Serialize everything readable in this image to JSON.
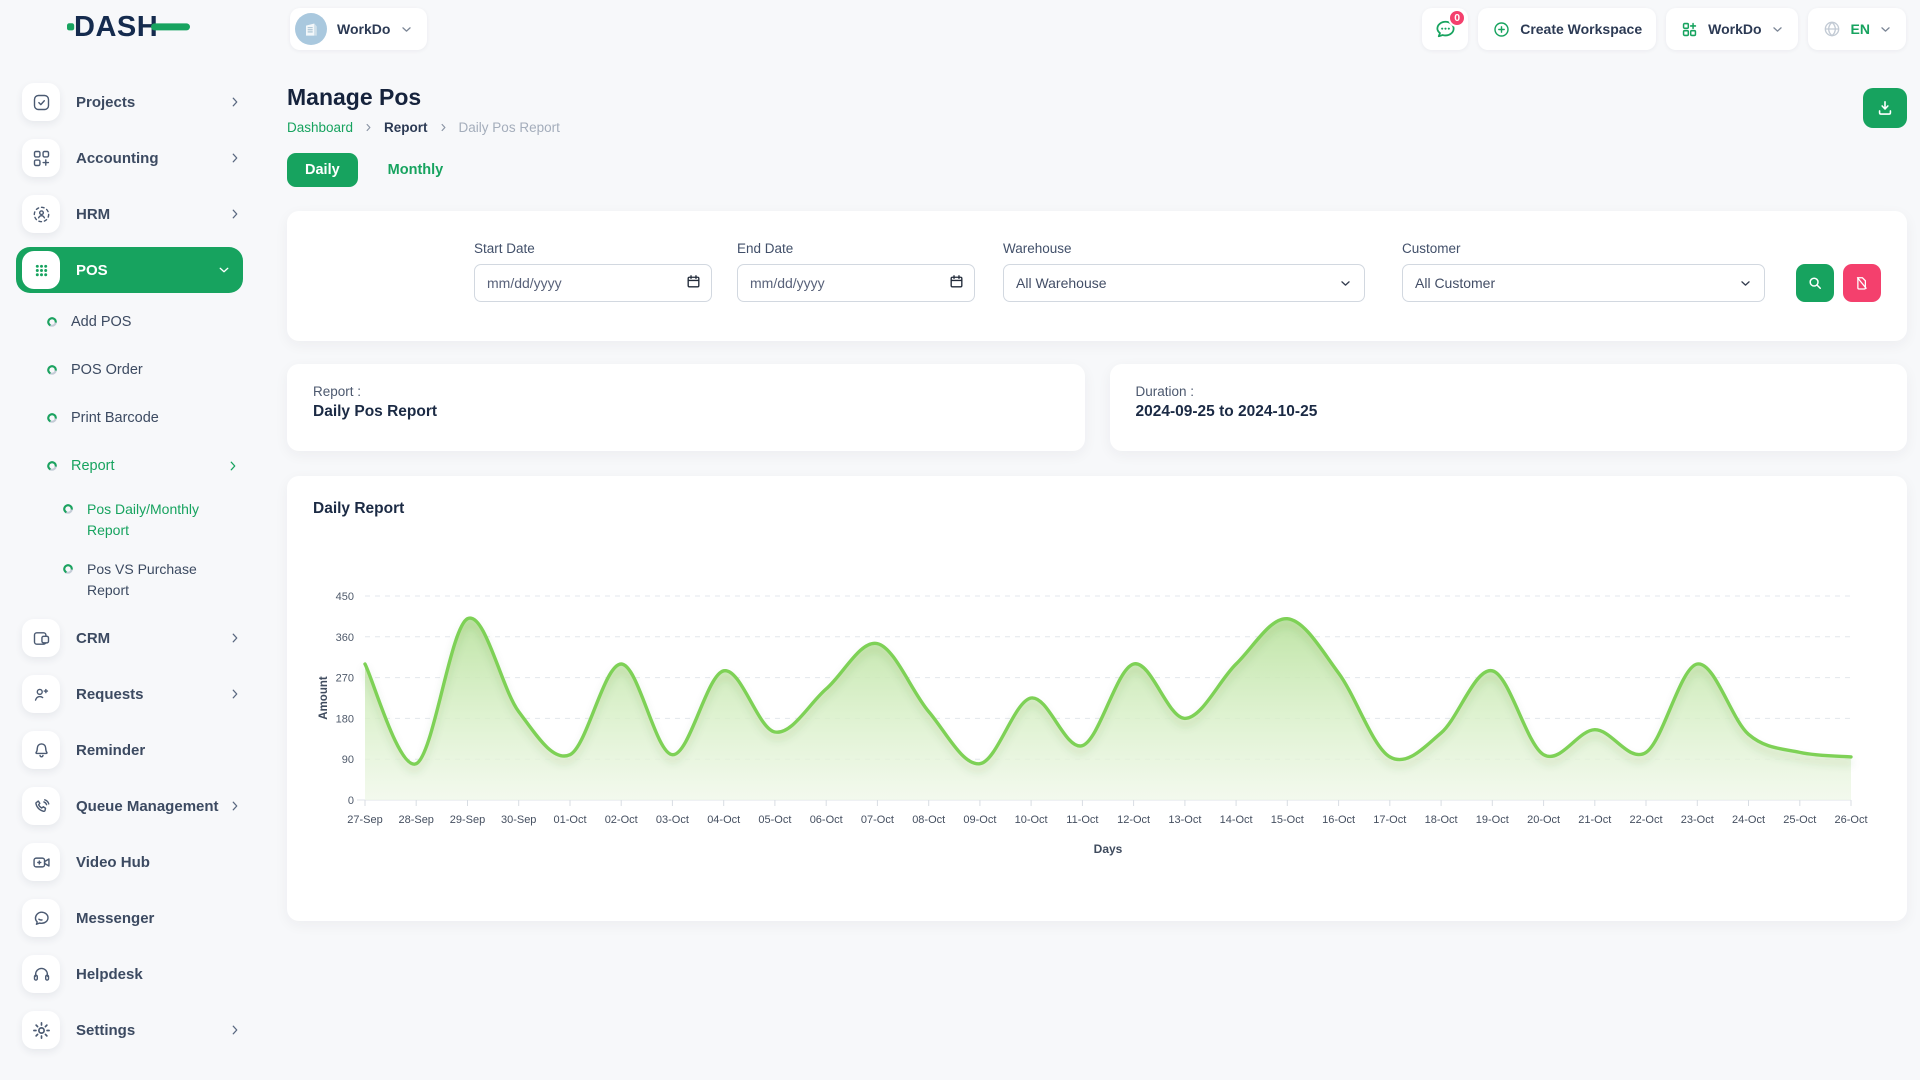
{
  "brand": {
    "logo_text": "DASH"
  },
  "colors": {
    "accent_green": "#17a35f",
    "danger_pink": "#f4406d",
    "navy": "#16233c",
    "chart_line": "#7ed157"
  },
  "header": {
    "workspace_switcher_label": "WorkDo",
    "messages_badge": "0",
    "create_workspace_label": "Create Workspace",
    "workdo_menu_label": "WorkDo",
    "language": "EN"
  },
  "sidebar": {
    "items": [
      {
        "key": "projects",
        "label": "Projects",
        "icon": "checkbox-icon",
        "chevron": "right"
      },
      {
        "key": "accounting",
        "label": "Accounting",
        "icon": "modules-icon",
        "chevron": "right"
      },
      {
        "key": "hrm",
        "label": "HRM",
        "icon": "hrm-icon",
        "chevron": "right"
      },
      {
        "key": "pos",
        "label": "POS",
        "icon": "pos-grid-icon",
        "chevron": "down",
        "active": true,
        "children": [
          {
            "key": "add-pos",
            "label": "Add POS"
          },
          {
            "key": "pos-order",
            "label": "POS Order"
          },
          {
            "key": "print-barcode",
            "label": "Print Barcode"
          },
          {
            "key": "report",
            "label": "Report",
            "active": true,
            "chevron": "right",
            "children": [
              {
                "key": "pos-daily-monthly-report",
                "label": "Pos Daily/Monthly Report",
                "active": true
              },
              {
                "key": "pos-vs-purchase-report",
                "label": "Pos VS Purchase Report"
              }
            ]
          }
        ]
      },
      {
        "key": "crm",
        "label": "CRM",
        "icon": "crm-icon",
        "chevron": "right"
      },
      {
        "key": "requests",
        "label": "Requests",
        "icon": "person-plus-icon",
        "chevron": "right"
      },
      {
        "key": "reminder",
        "label": "Reminder",
        "icon": "bell-icon"
      },
      {
        "key": "queue-management",
        "label": "Queue Management",
        "icon": "phone-icon",
        "chevron": "right"
      },
      {
        "key": "video-hub",
        "label": "Video Hub",
        "icon": "video-camera-icon"
      },
      {
        "key": "messenger",
        "label": "Messenger",
        "icon": "chat-bubble-icon"
      },
      {
        "key": "helpdesk",
        "label": "Helpdesk",
        "icon": "headset-icon"
      },
      {
        "key": "settings",
        "label": "Settings",
        "icon": "gear-icon",
        "chevron": "right"
      }
    ]
  },
  "page": {
    "title": "Manage Pos",
    "breadcrumb": [
      "Dashboard",
      "Report",
      "Daily Pos Report"
    ],
    "tabs": [
      {
        "label": "Daily",
        "active": true
      },
      {
        "label": "Monthly",
        "active": false
      }
    ]
  },
  "filters": {
    "start_date": {
      "label": "Start Date",
      "placeholder": "mm/dd/yyyy",
      "value": ""
    },
    "end_date": {
      "label": "End Date",
      "placeholder": "mm/dd/yyyy",
      "value": ""
    },
    "warehouse": {
      "label": "Warehouse",
      "value": "All Warehouse"
    },
    "customer": {
      "label": "Customer",
      "value": "All Customer"
    }
  },
  "summary": {
    "report_label": "Report :",
    "report_value": "Daily Pos Report",
    "duration_label": "Duration :",
    "duration_value": "2024-09-25 to 2024-10-25"
  },
  "chart_card": {
    "title": "Daily Report"
  },
  "chart_data": {
    "type": "area",
    "title": "Daily Report",
    "x": [
      "27-Sep",
      "28-Sep",
      "29-Sep",
      "30-Sep",
      "01-Oct",
      "02-Oct",
      "03-Oct",
      "04-Oct",
      "05-Oct",
      "06-Oct",
      "07-Oct",
      "08-Oct",
      "09-Oct",
      "10-Oct",
      "11-Oct",
      "12-Oct",
      "13-Oct",
      "14-Oct",
      "15-Oct",
      "16-Oct",
      "17-Oct",
      "18-Oct",
      "19-Oct",
      "20-Oct",
      "21-Oct",
      "22-Oct",
      "23-Oct",
      "24-Oct",
      "25-Oct",
      "26-Oct"
    ],
    "series": [
      {
        "name": "Amount",
        "values": [
          300,
          80,
          400,
          195,
          100,
          300,
          100,
          285,
          150,
          245,
          345,
          195,
          80,
          225,
          120,
          300,
          180,
          300,
          400,
          280,
          95,
          148,
          285,
          100,
          155,
          105,
          300,
          145,
          105,
          95
        ]
      }
    ],
    "xlabel": "Days",
    "ylabel": "Amount",
    "ylim": [
      0,
      450
    ],
    "yticks": [
      0,
      90,
      180,
      270,
      360,
      450
    ],
    "grid": true,
    "grid_style": "dashed",
    "legend": "none",
    "curve": "smooth",
    "line_color": "#7ed157",
    "fill_top": "#bce3a2",
    "fill_bottom": "#eff7e8"
  }
}
